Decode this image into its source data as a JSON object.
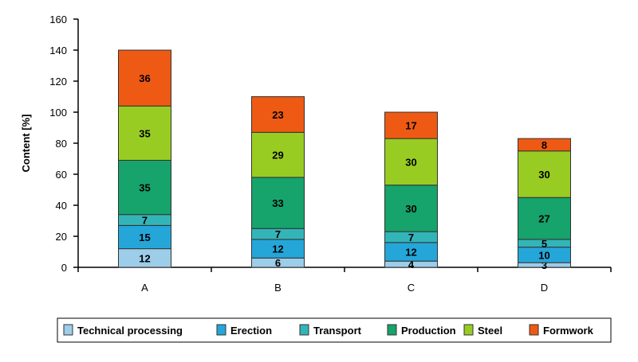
{
  "chart_data": {
    "type": "bar",
    "stacked": true,
    "categories": [
      "A",
      "B",
      "C",
      "D"
    ],
    "ylabel": "Content [%]",
    "xlabel": "",
    "ylim": [
      0,
      160
    ],
    "yticks": [
      0,
      20,
      40,
      60,
      80,
      100,
      120,
      140,
      160
    ],
    "grid": false,
    "legend_position": "bottom",
    "series": [
      {
        "name": "Technical processing",
        "color": "#9ccde9",
        "values": [
          12,
          6,
          4,
          3
        ]
      },
      {
        "name": "Erection",
        "color": "#25a6d9",
        "values": [
          15,
          12,
          12,
          10
        ]
      },
      {
        "name": "Transport",
        "color": "#33b5b8",
        "values": [
          7,
          7,
          7,
          5
        ]
      },
      {
        "name": "Production",
        "color": "#16a36c",
        "values": [
          35,
          33,
          30,
          27
        ]
      },
      {
        "name": "Steel",
        "color": "#99cc22",
        "values": [
          35,
          29,
          30,
          30
        ]
      },
      {
        "name": "Formwork",
        "color": "#ee5a14",
        "values": [
          36,
          23,
          17,
          8
        ]
      }
    ]
  }
}
